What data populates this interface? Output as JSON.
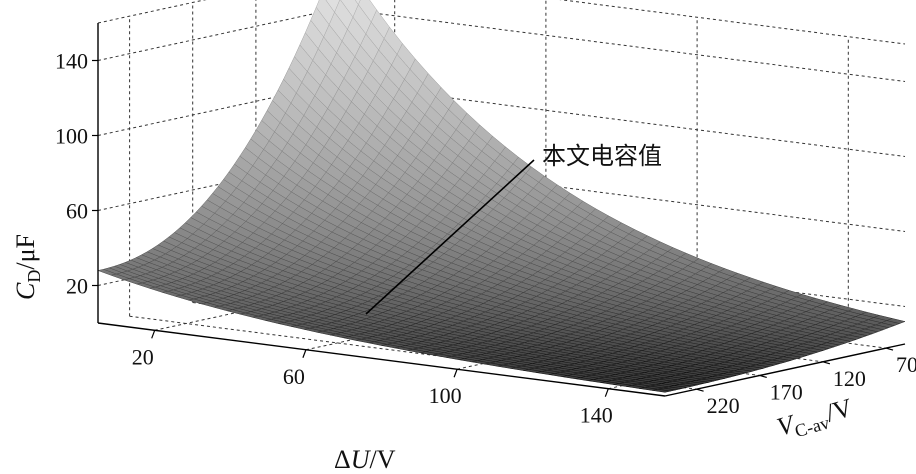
{
  "chart_data": {
    "type": "surface",
    "x_axis": {
      "label_main": "ΔU",
      "label_unit": "/V",
      "ticks": [
        20,
        60,
        100,
        140
      ],
      "range": [
        5,
        155
      ]
    },
    "y_axis": {
      "label_main": "V",
      "label_sub": "C-av",
      "label_unit": "/V",
      "ticks": [
        220,
        170,
        120,
        70
      ],
      "range": [
        245,
        55
      ]
    },
    "z_axis": {
      "label_main": "C",
      "label_sub": "D",
      "label_unit": "/μF",
      "ticks": [
        20,
        60,
        100,
        140
      ],
      "range": [
        0,
        160
      ]
    },
    "surface_corners": [
      {
        "delta_u": 5,
        "v_c_av": 245,
        "c_d": 28
      },
      {
        "delta_u": 5,
        "v_c_av": 55,
        "c_d": 170
      },
      {
        "delta_u": 155,
        "v_c_av": 245,
        "c_d": 2
      },
      {
        "delta_u": 155,
        "v_c_av": 55,
        "c_d": 12
      }
    ],
    "annotation": "本文电容值",
    "grid": true,
    "colormap": "gray"
  }
}
